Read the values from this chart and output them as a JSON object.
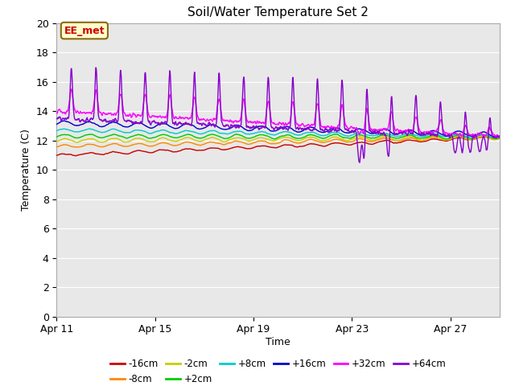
{
  "title": "Soil/Water Temperature Set 2",
  "xlabel": "Time",
  "ylabel": "Temperature (C)",
  "ylim": [
    0,
    20
  ],
  "yticks": [
    0,
    2,
    4,
    6,
    8,
    10,
    12,
    14,
    16,
    18,
    20
  ],
  "xtick_labels": [
    "Apr 11",
    "Apr 15",
    "Apr 19",
    "Apr 23",
    "Apr 27"
  ],
  "xtick_positions": [
    0,
    4,
    8,
    12,
    16
  ],
  "plot_bg_color": "#e8e8e8",
  "annotation_text": "EE_met",
  "annotation_bg": "#ffffcc",
  "annotation_border": "#8b6914",
  "n_days": 18,
  "series": [
    {
      "label": "-16cm",
      "color": "#cc0000",
      "base_start": 11.0,
      "base_end": 12.2,
      "osc_amp": 0.2,
      "osc_sharp": 0.1
    },
    {
      "label": "-8cm",
      "color": "#ff8800",
      "base_start": 11.6,
      "base_end": 12.2,
      "osc_amp": 0.25,
      "osc_sharp": 0.12
    },
    {
      "label": "-2cm",
      "color": "#cccc00",
      "base_start": 12.0,
      "base_end": 12.2,
      "osc_amp": 0.3,
      "osc_sharp": 0.15
    },
    {
      "label": "+2cm",
      "color": "#00cc00",
      "base_start": 12.3,
      "base_end": 12.25,
      "osc_amp": 0.3,
      "osc_sharp": 0.15
    },
    {
      "label": "+8cm",
      "color": "#00cccc",
      "base_start": 12.7,
      "base_end": 12.3,
      "osc_amp": 0.25,
      "osc_sharp": 0.12
    },
    {
      "label": "+16cm",
      "color": "#0000cc",
      "base_start": 13.2,
      "base_end": 12.4,
      "osc_amp": 0.4,
      "osc_sharp": 0.2
    },
    {
      "label": "+32cm",
      "color": "#ff00ff",
      "base_start": 14.0,
      "base_end": 12.3,
      "osc_amp": 1.5,
      "osc_sharp": 0.0
    },
    {
      "label": "+64cm",
      "color": "#8800cc",
      "base_start": 13.5,
      "base_end": 12.2,
      "osc_amp": 3.5,
      "osc_sharp": 0.0
    }
  ]
}
